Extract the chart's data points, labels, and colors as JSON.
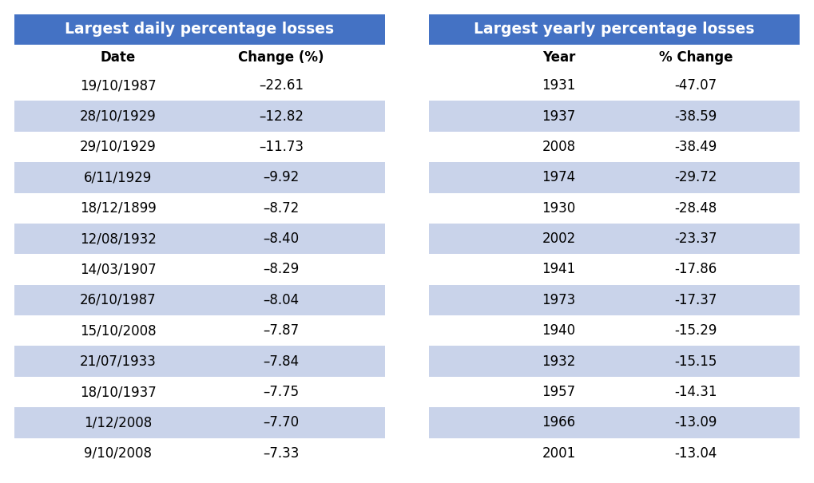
{
  "daily_title": "Largest daily percentage losses",
  "daily_col1": "Date",
  "daily_col2": "Change (%)",
  "daily_dates": [
    "19/10/1987",
    "28/10/1929",
    "29/10/1929",
    "6/11/1929",
    "18/12/1899",
    "12/08/1932",
    "14/03/1907",
    "26/10/1987",
    "15/10/2008",
    "21/07/1933",
    "18/10/1937",
    "1/12/2008",
    "9/10/2008"
  ],
  "daily_changes": [
    "–22.61",
    "–12.82",
    "–11.73",
    "–9.92",
    "–8.72",
    "–8.40",
    "–8.29",
    "–8.04",
    "–7.87",
    "–7.84",
    "–7.75",
    "–7.70",
    "–7.33"
  ],
  "yearly_title": "Largest yearly percentage losses",
  "yearly_col1": "Year",
  "yearly_col2": "% Change",
  "yearly_years": [
    "1931",
    "1937",
    "2008",
    "1974",
    "1930",
    "2002",
    "1941",
    "1973",
    "1940",
    "1932",
    "1957",
    "1966",
    "2001"
  ],
  "yearly_changes": [
    "-47.07",
    "-38.59",
    "-38.49",
    "-29.72",
    "-28.48",
    "-23.37",
    "-17.86",
    "-17.37",
    "-15.29",
    "-15.15",
    "-14.31",
    "-13.09",
    "-13.04"
  ],
  "header_bg": "#4472C4",
  "header_text": "#FFFFFF",
  "subheader_bg": "#FFFFFF",
  "row_bg_even": "#FFFFFF",
  "row_bg_odd": "#C9D3EA",
  "row_text": "#000000",
  "bg_color": "#FFFFFF",
  "title_fontsize": 13.5,
  "header_fontsize": 12,
  "cell_fontsize": 12
}
